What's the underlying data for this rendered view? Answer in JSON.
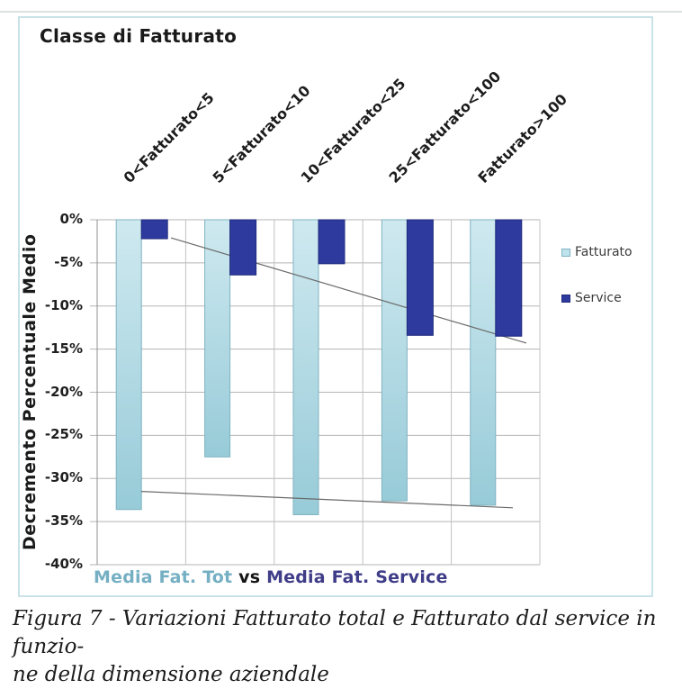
{
  "figure": {
    "chart_title": "Classe di Fatturato",
    "y_axis_title": "Decremento Percentuale Medio",
    "bottom_label": {
      "left": "Media Fat. Tot",
      "middle": " vs ",
      "right": "Media Fat. Service"
    },
    "caption_line1": "Figura 7 - Variazioni Fatturato total e Fatturato dal service in funzio-",
    "caption_line2": "ne della dimensione aziendale"
  },
  "chart_data": {
    "type": "bar",
    "title": "Classe di Fatturato",
    "ylabel": "Decremento Percentuale Medio",
    "categories": [
      "0<Fatturato<5",
      "5<Fatturato<10",
      "10<Fatturato<25",
      "25<Fatturato<100",
      "Fatturato>100"
    ],
    "series": [
      {
        "name": "Fatturato",
        "color": "#bee3ec",
        "values": [
          -33.6,
          -27.5,
          -34.2,
          -32.6,
          -33.1
        ]
      },
      {
        "name": "Service",
        "color": "#2e3a9d",
        "values": [
          -2.2,
          -6.4,
          -5.1,
          -13.4,
          -13.5
        ]
      }
    ],
    "ylim": [
      -40,
      0
    ],
    "ytick_step": -5,
    "yticks": [
      "0%",
      "-5%",
      "-10%",
      "-15%",
      "-20%",
      "-25%",
      "-30%",
      "-35%",
      "-40%"
    ],
    "grid": true,
    "legend_position": "right",
    "trendlines": [
      {
        "series": "Service",
        "start_pct": -2.1,
        "end_pct": -14.3
      },
      {
        "series": "Fatturato",
        "start_pct": -31.5,
        "end_pct": -33.4
      }
    ],
    "colors": {
      "light_bar_top": "#cfe9f0",
      "light_bar_bottom": "#97cbd8",
      "light_bar_stroke": "#7fb3c1",
      "dark_bar": "#2e3a9d",
      "dark_bar_stroke": "#202c7c",
      "gridline": "#b5b5b5",
      "axis": "#8f8f8f",
      "trendline": "#6a6a6a",
      "panel_border": "#c8e2e7",
      "teal_text": "#74afc3",
      "indigo_text": "#3f3c88"
    }
  }
}
